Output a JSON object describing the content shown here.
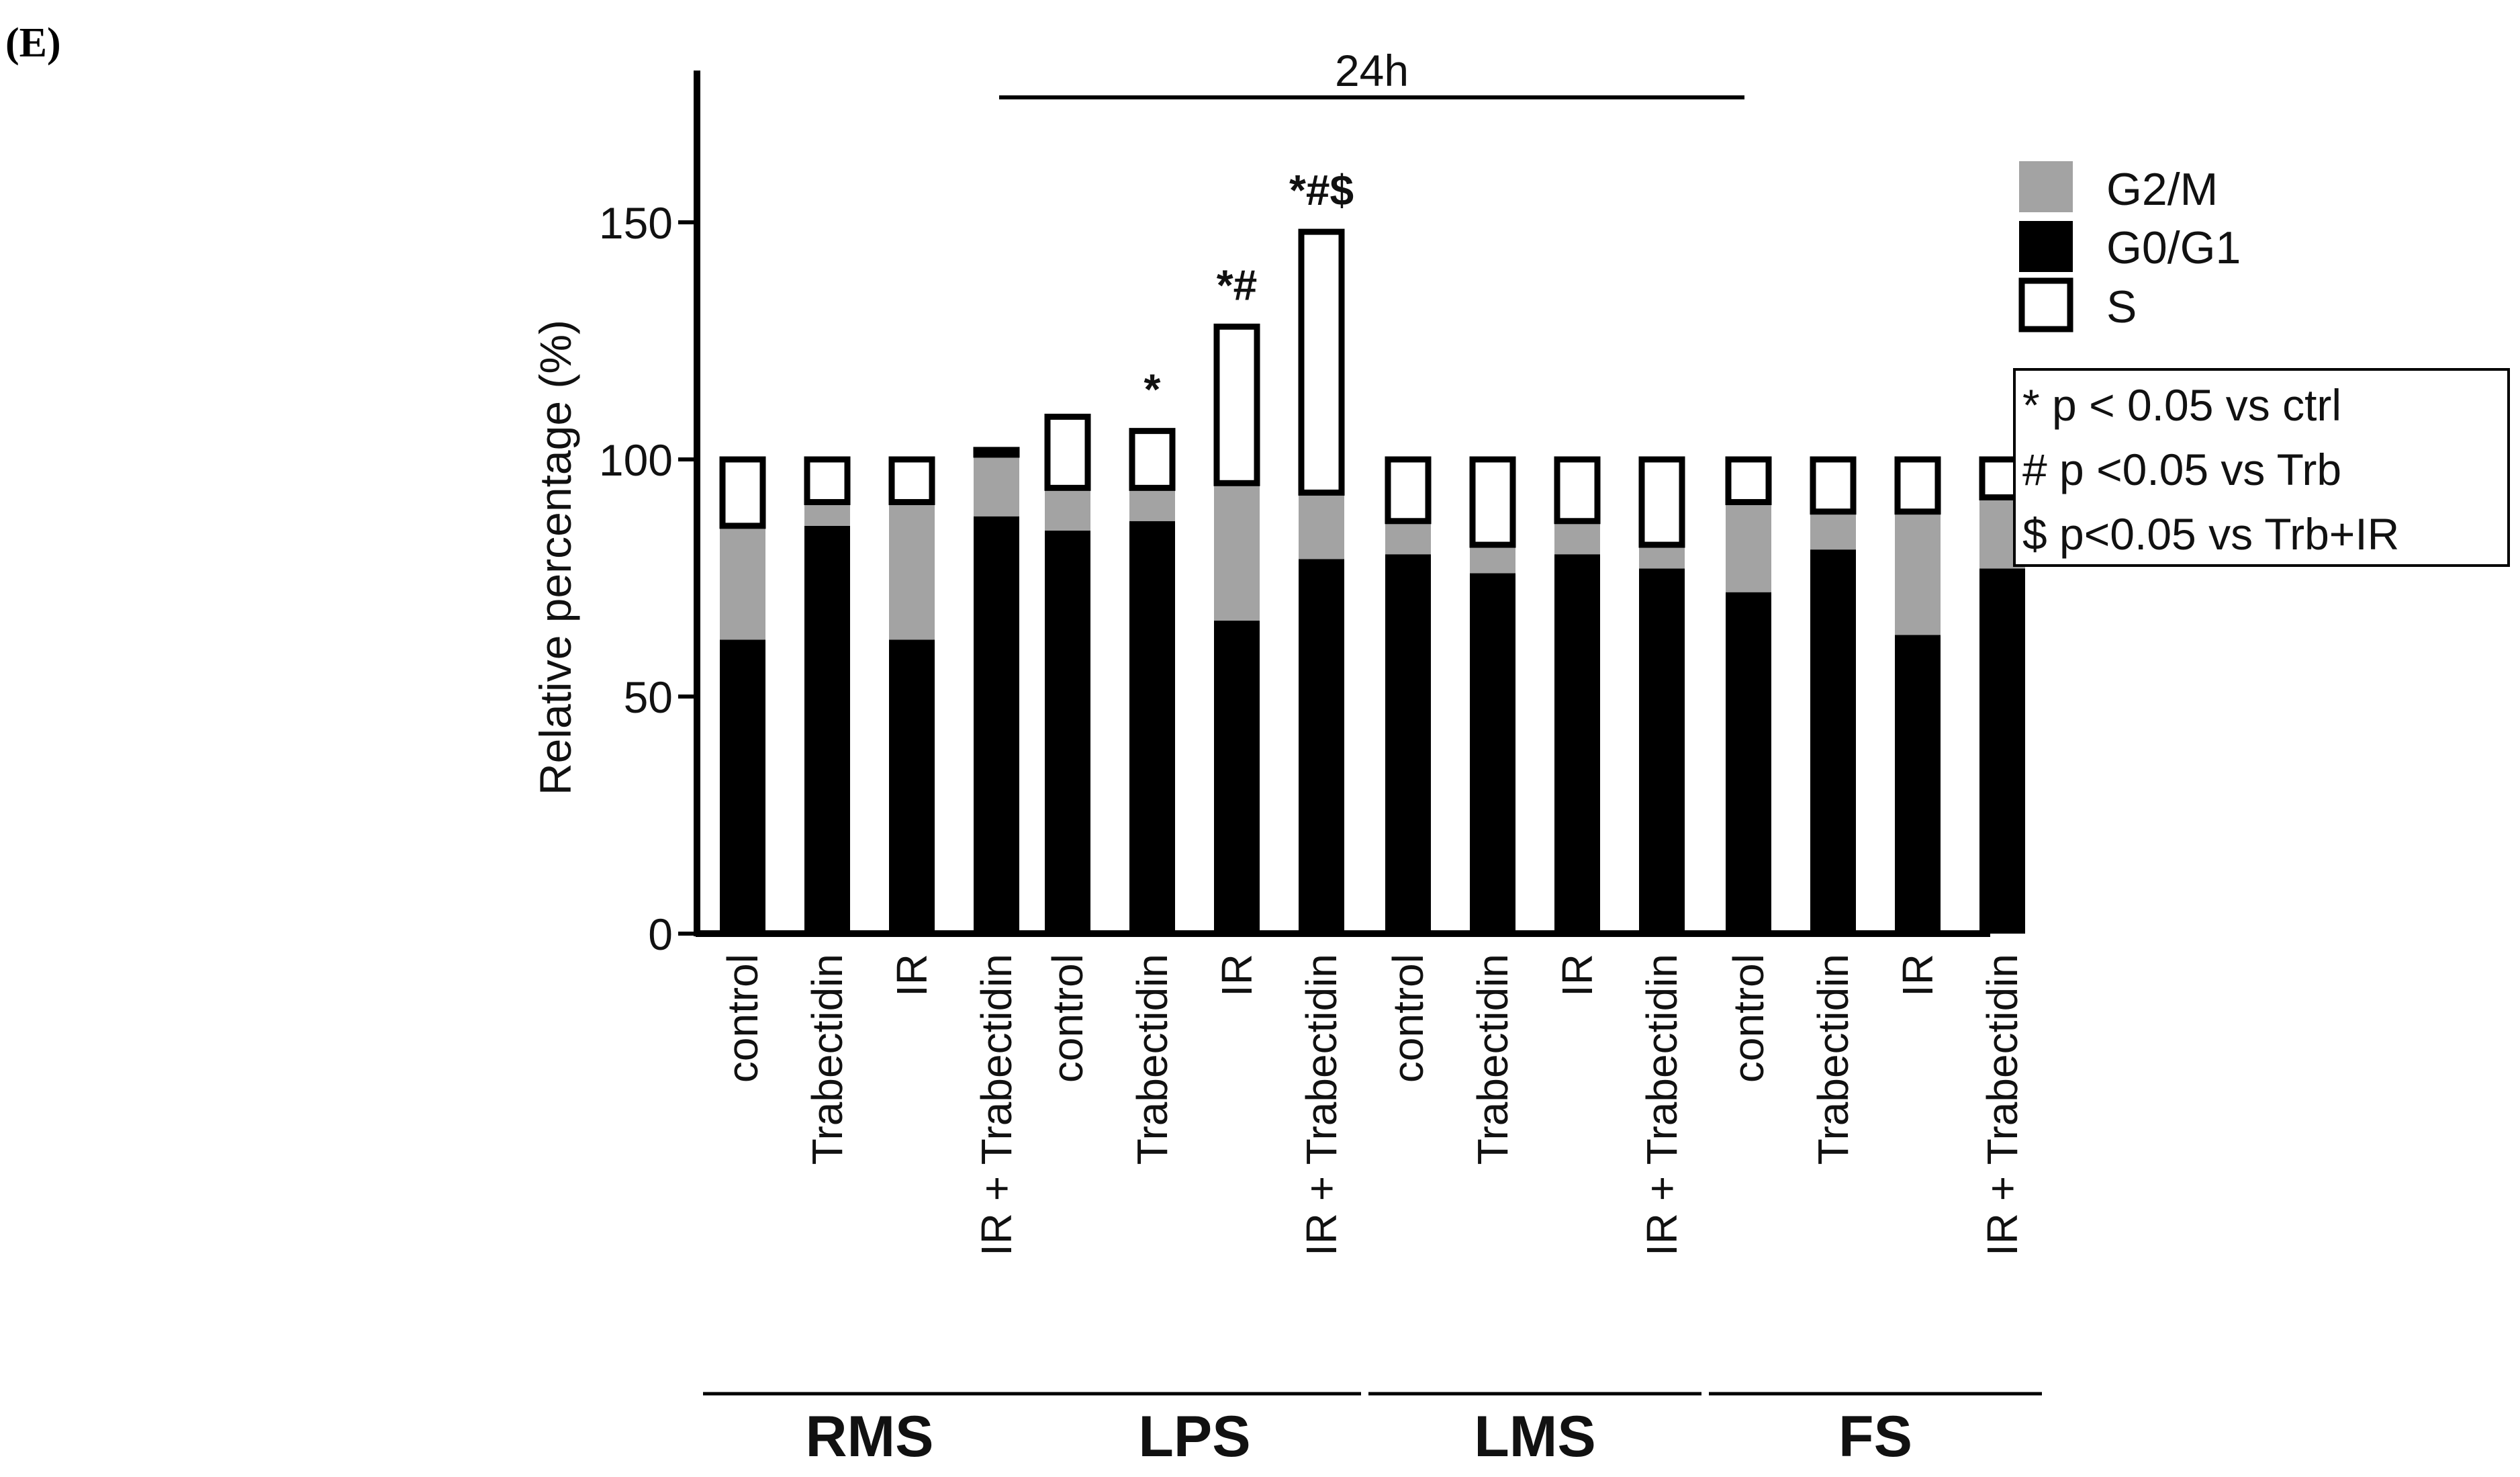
{
  "panel_label": "(E)",
  "chart_data": {
    "type": "bar",
    "stacked": true,
    "title": "24h",
    "ylabel": "Relative percentage (%)",
    "xlabel": "",
    "ylim": [
      0,
      180
    ],
    "yticks": [
      0,
      50,
      100,
      150
    ],
    "groups": [
      {
        "name": "RMS",
        "categories": [
          "control",
          "Trabectidin",
          "IR",
          "IR + Trabectidin"
        ]
      },
      {
        "name": "LPS",
        "categories": [
          "control",
          "Trabectidin",
          "IR",
          "IR + Trabectidin"
        ]
      },
      {
        "name": "LMS",
        "categories": [
          "control",
          "Trabectidin",
          "IR",
          "IR + Trabectidin"
        ]
      },
      {
        "name": "FS",
        "categories": [
          "control",
          "Trabectidin",
          "IR",
          "IR + Trabectidin"
        ]
      }
    ],
    "series": [
      {
        "name": "G0/G1",
        "color": "#000000",
        "values": [
          62,
          86,
          62,
          88,
          85,
          87,
          66,
          79,
          80,
          76,
          80,
          77,
          72,
          81,
          63,
          77
        ]
      },
      {
        "name": "G2/M",
        "color": "#a3a3a3",
        "values": [
          24,
          5,
          29,
          13,
          9,
          7,
          29,
          14,
          7,
          6,
          7,
          5,
          19,
          8,
          26,
          15
        ]
      },
      {
        "name": "S",
        "color": "#ffffff",
        "values": [
          14,
          9,
          9,
          1,
          15,
          12,
          33,
          55,
          13,
          18,
          13,
          18,
          9,
          11,
          11,
          8
        ]
      }
    ],
    "annotations": [
      {
        "bar_index": 5,
        "text": "*"
      },
      {
        "bar_index": 6,
        "text": "*#"
      },
      {
        "bar_index": 7,
        "text": "*#$"
      }
    ],
    "legend": {
      "position": "top-right",
      "entries": [
        {
          "label": "G2/M",
          "color": "#a3a3a3"
        },
        {
          "label": "G0/G1",
          "color": "#000000"
        },
        {
          "label": "S",
          "color": "#ffffff"
        }
      ]
    },
    "notes": [
      "* p < 0.05 vs ctrl",
      "# p <0.05 vs Trb",
      "$ p<0.05  vs Trb+IR"
    ]
  }
}
